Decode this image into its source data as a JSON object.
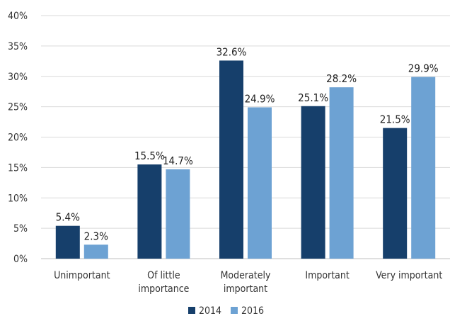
{
  "chart_data": {
    "type": "bar",
    "categories": [
      [
        "Unimportant"
      ],
      [
        "Of little",
        "importance"
      ],
      [
        "Moderately",
        "important"
      ],
      [
        "Important"
      ],
      [
        "Very important"
      ]
    ],
    "series": [
      {
        "name": "2014",
        "values": [
          5.4,
          15.5,
          32.6,
          25.1,
          21.5
        ],
        "labels": [
          "5.4%",
          "15.5%",
          "32.6%",
          "25.1%",
          "21.5%"
        ],
        "color": "#163f6b"
      },
      {
        "name": "2016",
        "values": [
          2.3,
          14.7,
          24.9,
          28.2,
          29.9
        ],
        "labels": [
          "2.3%",
          "14.7%",
          "24.9%",
          "28.2%",
          "29.9%"
        ],
        "color": "#6da2d3"
      }
    ],
    "ylim": [
      0,
      40
    ],
    "yticks": [
      0,
      5,
      10,
      15,
      20,
      25,
      30,
      35,
      40
    ],
    "ytick_labels": [
      "0%",
      "5%",
      "10%",
      "15%",
      "20%",
      "25%",
      "30%",
      "35%",
      "40%"
    ],
    "grid": true,
    "grid_color": "#d9d9d9",
    "legend": "bottom-center"
  }
}
